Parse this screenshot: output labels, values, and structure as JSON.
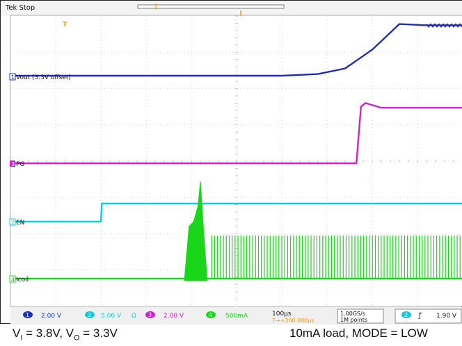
{
  "chart_data": {
    "type": "line",
    "title": "",
    "status": "Tek Stop",
    "grid": true,
    "trigger_marker": "T",
    "series": [
      {
        "label": "1",
        "name": "Vout (3.3V offset)",
        "color": "#1f2fb0",
        "scale": "2.00 V",
        "x": [
          0,
          60,
          68,
          74,
          80,
          86,
          92,
          100
        ],
        "y": [
          0,
          0,
          0.08,
          0.35,
          1.25,
          2.48,
          2.42,
          2.42
        ]
      },
      {
        "label": "3",
        "name": "PG",
        "color": "#cc22cc",
        "scale": "2.00 V",
        "x": [
          0,
          76.5,
          77.5,
          78.5,
          82,
          100
        ],
        "y": [
          0,
          0,
          2.4,
          2.55,
          2.35,
          2.35
        ]
      },
      {
        "label": "2",
        "name": "EN",
        "color": "#19c8d8",
        "scale": "5.00 V",
        "x": [
          0,
          20,
          20.2,
          100
        ],
        "y": [
          0,
          0,
          0.5,
          0.5
        ]
      },
      {
        "label": "4",
        "name": "Icoil",
        "color": "#19d619",
        "scale": "500mA",
        "x": [
          0,
          61,
          100
        ],
        "y": [
          0,
          0,
          0
        ]
      }
    ],
    "bottom_bar": {
      "ch1_scale": "2.00 V",
      "ch2_scale": "5.00 V",
      "ch2_extra": "Ω",
      "ch3_scale": "2.00 V",
      "ch4_scale": "500mA",
      "time_div": "100μs",
      "trigger_pos": "T→+300.000μs",
      "sample_rate": "1.00GS/s",
      "record_len": "1M points",
      "trig_ch": "2",
      "trig_level": "1.90 V"
    }
  },
  "captions": {
    "left_vi": "V",
    "left_vi_sub": "I",
    "left_mid": " = 3.8V, V",
    "left_vo_sub": "O",
    "left_end": " = 3.3V",
    "right": "10mA load, MODE = LOW"
  }
}
